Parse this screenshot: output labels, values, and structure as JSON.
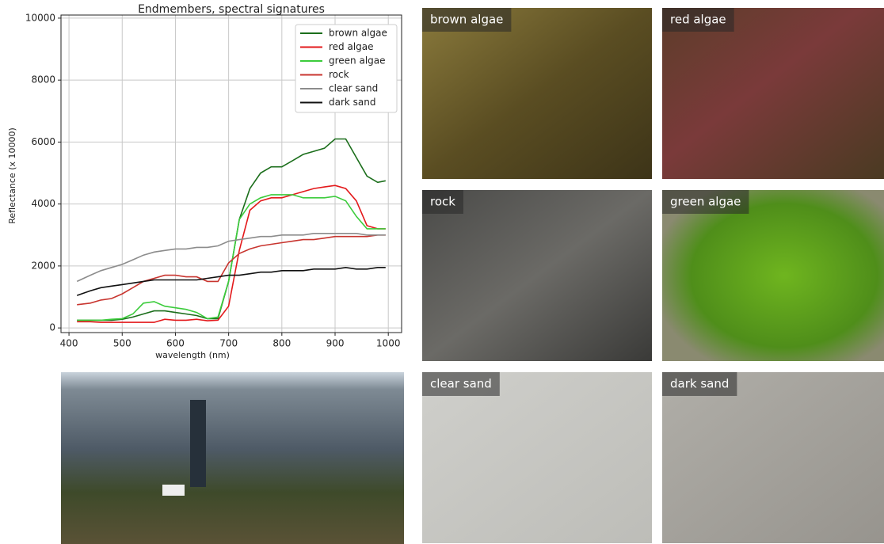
{
  "chart_data": {
    "type": "line",
    "title": "Endmembers, spectral signatures",
    "x_label": "wavelength (nm)",
    "y_label": "Reflectance (x 10000)",
    "x": [
      415,
      440,
      460,
      480,
      500,
      520,
      540,
      560,
      580,
      600,
      620,
      640,
      660,
      680,
      700,
      720,
      740,
      760,
      780,
      800,
      820,
      840,
      860,
      880,
      900,
      920,
      940,
      960,
      980,
      995
    ],
    "series": [
      {
        "name": "brown algae",
        "color": "#1b6e1b",
        "values": [
          250,
          250,
          250,
          250,
          280,
          350,
          450,
          550,
          550,
          500,
          450,
          400,
          300,
          300,
          1500,
          3500,
          4500,
          5000,
          5200,
          5200,
          5400,
          5600,
          5700,
          5800,
          6100,
          6100,
          5500,
          4900,
          4700,
          4750
        ]
      },
      {
        "name": "red algae",
        "color": "#e3191b",
        "values": [
          200,
          200,
          180,
          180,
          180,
          180,
          180,
          180,
          280,
          250,
          250,
          280,
          230,
          250,
          700,
          2500,
          3800,
          4100,
          4200,
          4200,
          4300,
          4400,
          4500,
          4550,
          4600,
          4500,
          4100,
          3300,
          3200,
          3200
        ]
      },
      {
        "name": "green algae",
        "color": "#3ccc3c",
        "values": [
          250,
          250,
          250,
          280,
          300,
          450,
          800,
          850,
          700,
          650,
          600,
          500,
          300,
          350,
          1500,
          3500,
          4000,
          4200,
          4300,
          4300,
          4300,
          4200,
          4200,
          4200,
          4250,
          4100,
          3600,
          3200,
          3200,
          3200
        ]
      },
      {
        "name": "rock",
        "color": "#c8352f",
        "values": [
          750,
          800,
          900,
          950,
          1100,
          1300,
          1500,
          1600,
          1700,
          1700,
          1650,
          1650,
          1500,
          1500,
          2100,
          2400,
          2550,
          2650,
          2700,
          2750,
          2800,
          2850,
          2850,
          2900,
          2950,
          2950,
          2950,
          2950,
          3000,
          3000
        ]
      },
      {
        "name": "clear sand",
        "color": "#8c8c8c",
        "values": [
          1500,
          1700,
          1850,
          1950,
          2050,
          2200,
          2350,
          2450,
          2500,
          2550,
          2550,
          2600,
          2600,
          2650,
          2800,
          2850,
          2900,
          2950,
          2950,
          3000,
          3000,
          3000,
          3050,
          3050,
          3050,
          3050,
          3050,
          3000,
          3000,
          3000
        ]
      },
      {
        "name": "dark sand",
        "color": "#111111",
        "values": [
          1050,
          1200,
          1300,
          1350,
          1400,
          1450,
          1500,
          1550,
          1550,
          1550,
          1550,
          1550,
          1600,
          1650,
          1700,
          1700,
          1750,
          1800,
          1800,
          1850,
          1850,
          1850,
          1900,
          1900,
          1900,
          1950,
          1900,
          1900,
          1950,
          1950
        ]
      }
    ],
    "xlim": [
      385,
      1025
    ],
    "xticks": [
      400,
      500,
      600,
      700,
      800,
      900,
      1000
    ],
    "ylim": [
      -150,
      10100
    ],
    "yticks": [
      0,
      2000,
      4000,
      6000,
      8000,
      10000
    ],
    "grid": true,
    "legend": "upper right"
  },
  "photos": [
    {
      "label": "brown algae"
    },
    {
      "label": "red algae"
    },
    {
      "label": "rock"
    },
    {
      "label": "green algae"
    },
    {
      "label": "clear sand"
    },
    {
      "label": "dark sand"
    }
  ]
}
